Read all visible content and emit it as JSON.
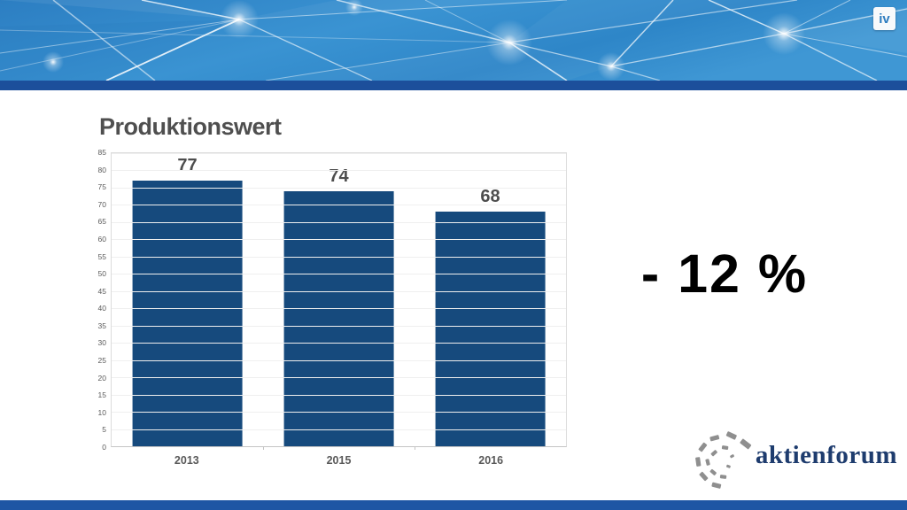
{
  "slide": {
    "title": "Produktionswert",
    "highlight": "- 12 %"
  },
  "header": {
    "iv_logo_text": "iv",
    "banner_base_color": "#2e86c8",
    "stripe_color": "#1c4f9b"
  },
  "footer": {
    "bar_color": "#1e56a4",
    "logo_text": "aktienforum",
    "logo_text_color": "#1e3c6e",
    "logo_icon": "aktienforum-spiral-icon",
    "logo_icon_color": "#8f8f8f"
  },
  "chart_data": {
    "type": "bar",
    "title": "Produktionswert",
    "categories": [
      "2013",
      "2015",
      "2016"
    ],
    "values": [
      77,
      74,
      68
    ],
    "data_labels": [
      "77",
      "74",
      "68"
    ],
    "bar_color": "#164a7d",
    "ylim": [
      0,
      85
    ],
    "ytick_step": 5,
    "grid": true,
    "legend": "none",
    "xlabel": "",
    "ylabel": ""
  }
}
